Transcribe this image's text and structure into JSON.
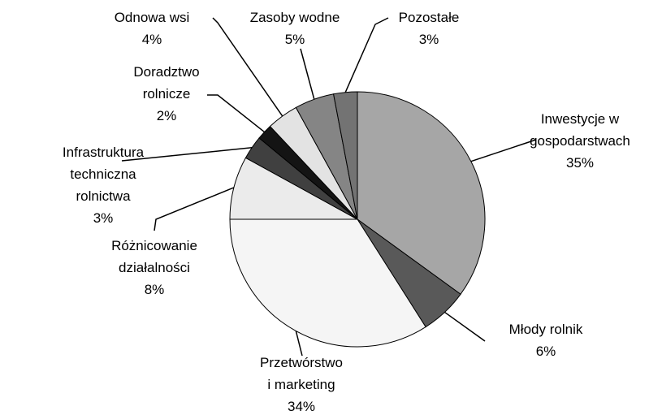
{
  "chart_data": {
    "type": "pie",
    "categories": [
      "Inwestycje w\ngospodarstwach",
      "Młody rolnik",
      "Przetwórstwo\ni marketing",
      "Różnicowanie\ndziałalności",
      "Infrastruktura\ntechniczna\nrolnictwa",
      "Doradztwo\nrolnicze",
      "Odnowa wsi",
      "Zasoby wodne",
      "Pozostałe"
    ],
    "values": [
      35,
      6,
      34,
      8,
      3,
      2,
      4,
      5,
      3
    ],
    "value_labels": [
      "35%",
      "6%",
      "34%",
      "8%",
      "3%",
      "2%",
      "4%",
      "5%",
      "3%"
    ],
    "colors": [
      "#a6a6a6",
      "#595959",
      "#f5f5f5",
      "#ebebeb",
      "#404040",
      "#141414",
      "#e3e3e3",
      "#858585",
      "#737373"
    ]
  }
}
